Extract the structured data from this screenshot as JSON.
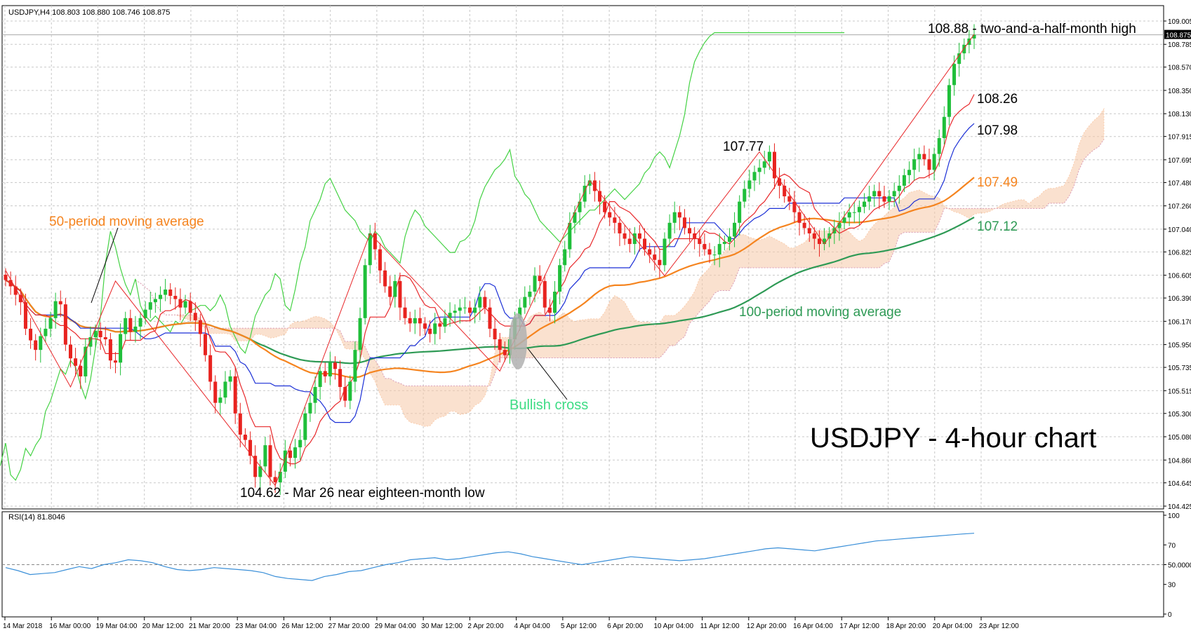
{
  "chart_data": [
    {
      "type": "candlestick",
      "header": "USDJPY,H4  108.803 108.880 108.746 108.875",
      "title": "USDJPY - 4-hour chart",
      "y_ticks": [
        "109.005",
        "108.785",
        "108.570",
        "108.350",
        "108.130",
        "107.915",
        "107.695",
        "107.480",
        "107.260",
        "107.040",
        "106.825",
        "106.605",
        "106.390",
        "106.170",
        "105.950",
        "105.735",
        "105.515",
        "105.300",
        "105.080",
        "104.860",
        "104.645",
        "104.425"
      ],
      "ylim": [
        104.425,
        109.005
      ],
      "current_price": "108.875",
      "x_ticks": [
        "14 Mar 2018",
        "16 Mar 00:00",
        "19 Mar 04:00",
        "20 Mar 12:00",
        "21 Mar 20:00",
        "23 Mar 04:00",
        "26 Mar 12:00",
        "27 Mar 20:00",
        "29 Mar 04:00",
        "30 Mar 12:00",
        "2 Apr 20:00",
        "4 Apr 04:00",
        "5 Apr 12:00",
        "6 Apr 20:00",
        "10 Apr 04:00",
        "11 Apr 12:00",
        "12 Apr 20:00",
        "16 Apr 04:00",
        "17 Apr 12:00",
        "18 Apr 20:00",
        "20 Apr 04:00",
        "23 Apr 12:00"
      ],
      "closes": [
        106.56,
        106.5,
        106.42,
        106.35,
        106.1,
        105.99,
        105.9,
        106.03,
        106.1,
        106.2,
        106.36,
        106.33,
        105.95,
        105.82,
        105.75,
        105.65,
        105.93,
        106.02,
        106.08,
        106.02,
        106.0,
        105.8,
        105.78,
        106.05,
        106.2,
        106.07,
        106.12,
        106.2,
        106.28,
        106.35,
        106.38,
        106.42,
        106.47,
        106.41,
        106.38,
        106.3,
        106.36,
        106.25,
        106.18,
        106.05,
        105.85,
        105.6,
        105.4,
        105.45,
        105.6,
        105.65,
        105.3,
        105.1,
        105.05,
        104.9,
        104.7,
        104.8,
        105.0,
        104.7,
        104.65,
        104.75,
        104.95,
        104.88,
        104.98,
        105.05,
        105.3,
        105.4,
        105.55,
        105.7,
        105.65,
        105.78,
        105.72,
        105.55,
        105.42,
        105.6,
        105.9,
        106.2,
        106.7,
        107.0,
        106.85,
        106.65,
        106.5,
        106.4,
        106.55,
        106.3,
        106.2,
        106.15,
        106.2,
        106.15,
        106.1,
        106.05,
        106.15,
        106.12,
        106.2,
        106.25,
        106.27,
        106.3,
        106.3,
        106.25,
        106.3,
        106.4,
        106.3,
        106.1,
        106.0,
        105.9,
        105.85,
        106.0,
        106.2,
        106.3,
        106.4,
        106.45,
        106.6,
        106.55,
        106.3,
        106.25,
        106.45,
        106.7,
        106.85,
        107.1,
        107.2,
        107.3,
        107.45,
        107.5,
        107.4,
        107.3,
        107.2,
        107.15,
        107.1,
        107.0,
        106.95,
        106.9,
        107.0,
        106.95,
        106.85,
        106.8,
        106.75,
        106.7,
        106.95,
        107.1,
        107.2,
        107.15,
        107.05,
        107.0,
        106.95,
        106.9,
        106.85,
        106.8,
        106.8,
        106.9,
        106.92,
        106.97,
        107.1,
        107.3,
        107.42,
        107.5,
        107.58,
        107.62,
        107.68,
        107.77,
        107.52,
        107.45,
        107.35,
        107.3,
        107.2,
        107.1,
        107.05,
        107.0,
        106.95,
        106.9,
        106.95,
        107.0,
        107.05,
        107.1,
        107.15,
        107.2,
        107.2,
        107.25,
        107.3,
        107.35,
        107.4,
        107.35,
        107.3,
        107.35,
        107.4,
        107.45,
        107.55,
        107.6,
        107.7,
        107.75,
        107.7,
        107.6,
        107.75,
        107.9,
        108.1,
        108.4,
        108.6,
        108.7,
        108.78,
        108.84,
        108.875
      ],
      "series": [
        {
          "name": "50-period moving average",
          "label": "107.49",
          "color": "#f5841f"
        },
        {
          "name": "100-period moving average",
          "label": "107.12",
          "color": "#2e9a55"
        },
        {
          "label": "108.26",
          "color": "#e8272a"
        },
        {
          "label": "107.98",
          "color": "#1b2fd6"
        },
        {
          "color": "#44d244"
        }
      ],
      "annotations": [
        {
          "text": "50-period moving average",
          "color": "#f5841f"
        },
        {
          "text": "100-period moving average",
          "color": "#2e9a55"
        },
        {
          "text": "Bullish cross",
          "color": "#3ddc84"
        },
        {
          "text": "104.62 - Mar 26 near eighteen-month low",
          "color": "#000000"
        },
        {
          "text": "107.77",
          "color": "#000000"
        },
        {
          "text": "108.88 -  two-and-a-half-month high",
          "color": "#000000"
        }
      ]
    },
    {
      "type": "line",
      "header": "RSI(14) 81.8046",
      "y_ticks": [
        "100",
        "70",
        "50.0000",
        "30",
        "0"
      ],
      "ylim": [
        0,
        100
      ],
      "level": 50,
      "color": "#3a8fd8",
      "values": [
        47,
        44,
        40,
        41,
        42,
        45,
        48,
        46,
        50,
        52,
        55,
        54,
        52,
        48,
        45,
        44,
        45,
        47,
        46,
        45,
        44,
        42,
        38,
        36,
        35,
        34,
        38,
        40,
        43,
        44,
        47,
        50,
        52,
        55,
        56,
        57,
        55,
        56,
        58,
        60,
        62,
        63,
        61,
        58,
        56,
        54,
        52,
        50,
        52,
        54,
        56,
        58,
        57,
        56,
        55,
        54,
        55,
        56,
        58,
        60,
        62,
        64,
        66,
        67,
        66,
        65,
        64,
        66,
        68,
        70,
        72,
        74,
        75,
        76,
        77,
        78,
        79,
        80,
        81,
        81.8
      ]
    }
  ]
}
